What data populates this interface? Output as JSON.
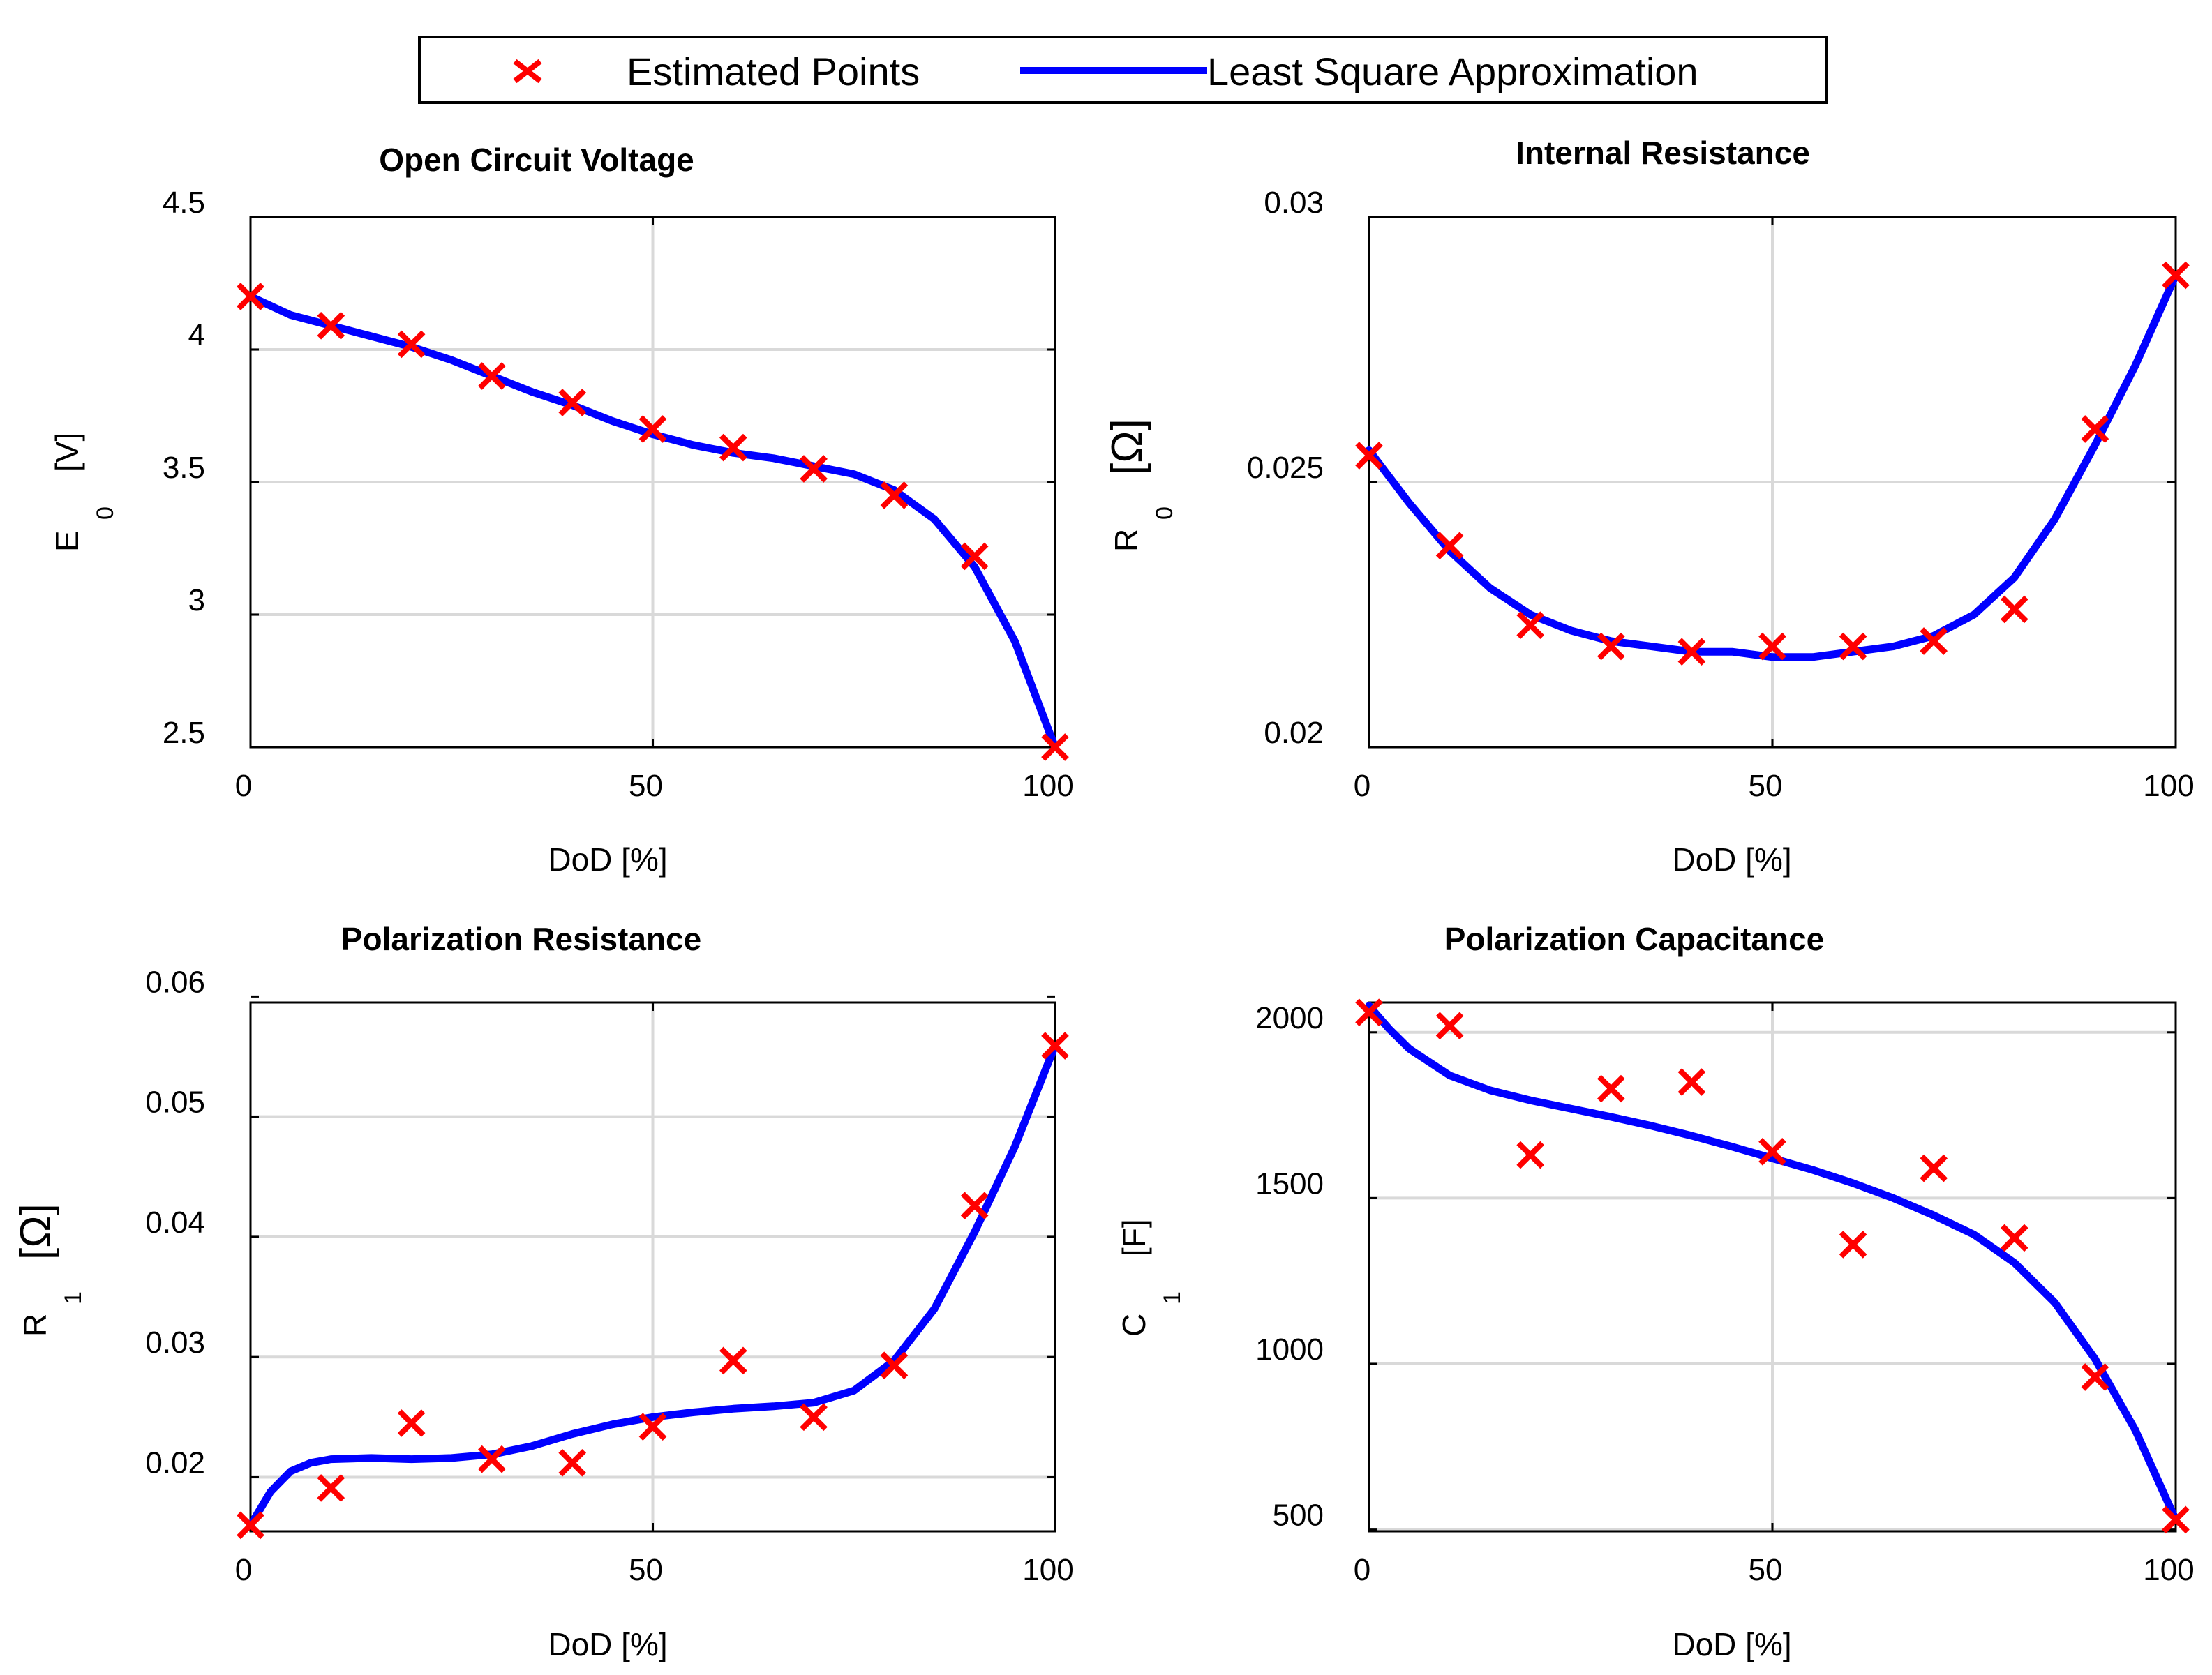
{
  "legend": {
    "points_label": "Estimated Points",
    "fit_label": "Least Square Approximation",
    "marker_color": "#ff0000",
    "line_color": "#0000ff"
  },
  "chart_data": [
    {
      "type": "line",
      "title": "Open Circuit Voltage",
      "xlabel": "DoD [%]",
      "ylabel_main": "E",
      "ylabel_sub": "0",
      "ylabel_unit": "[V]",
      "xlim": [
        0,
        100
      ],
      "ylim": [
        2.5,
        4.5
      ],
      "xticks": [
        0,
        50,
        100
      ],
      "xtick_labels": [
        "0",
        "50",
        "100"
      ],
      "yticks": [
        2.5,
        3,
        3.5,
        4,
        4.5
      ],
      "ytick_labels": [
        "2.5",
        "3",
        "3.5",
        "4",
        "4.5"
      ],
      "grid": true,
      "series": [
        {
          "name": "Estimated Points",
          "kind": "scatter",
          "x": [
            0,
            10,
            20,
            30,
            40,
            50,
            60,
            70,
            80,
            90,
            100
          ],
          "y": [
            4.2,
            4.09,
            4.02,
            3.9,
            3.8,
            3.7,
            3.63,
            3.55,
            3.45,
            3.22,
            2.5
          ]
        },
        {
          "name": "Least Square Approximation",
          "kind": "line",
          "x": [
            0,
            5,
            10,
            15,
            20,
            25,
            30,
            35,
            40,
            45,
            50,
            55,
            60,
            65,
            70,
            75,
            80,
            85,
            90,
            95,
            100
          ],
          "y": [
            4.2,
            4.13,
            4.09,
            4.05,
            4.01,
            3.96,
            3.9,
            3.84,
            3.79,
            3.73,
            3.68,
            3.64,
            3.61,
            3.59,
            3.56,
            3.53,
            3.47,
            3.36,
            3.18,
            2.9,
            2.5
          ]
        }
      ]
    },
    {
      "type": "line",
      "title": "Internal Resistance",
      "xlabel": "DoD [%]",
      "ylabel_main": "R",
      "ylabel_sub": "0",
      "ylabel_unit": "[Ω]",
      "xlim": [
        0,
        100
      ],
      "ylim": [
        0.02,
        0.03
      ],
      "xticks": [
        0,
        50,
        100
      ],
      "xtick_labels": [
        "0",
        "50",
        "100"
      ],
      "yticks": [
        0.02,
        0.025,
        0.03
      ],
      "ytick_labels": [
        "0.02",
        "0.025",
        "0.03"
      ],
      "grid": true,
      "series": [
        {
          "name": "Estimated Points",
          "kind": "scatter",
          "x": [
            0,
            10,
            20,
            30,
            40,
            50,
            60,
            70,
            80,
            90,
            100
          ],
          "y": [
            0.0255,
            0.0238,
            0.0223,
            0.0219,
            0.0218,
            0.0219,
            0.0219,
            0.022,
            0.0226,
            0.026,
            0.0289
          ]
        },
        {
          "name": "Least Square Approximation",
          "kind": "line",
          "x": [
            0,
            5,
            10,
            15,
            20,
            25,
            30,
            35,
            40,
            45,
            50,
            55,
            60,
            65,
            70,
            75,
            80,
            85,
            90,
            95,
            100
          ],
          "y": [
            0.0256,
            0.0246,
            0.0237,
            0.023,
            0.0225,
            0.0222,
            0.022,
            0.0219,
            0.0218,
            0.0218,
            0.0217,
            0.0217,
            0.0218,
            0.0219,
            0.0221,
            0.0225,
            0.0232,
            0.0243,
            0.0257,
            0.0272,
            0.0289
          ]
        }
      ]
    },
    {
      "type": "line",
      "title": "Polarization Resistance",
      "xlabel": "DoD [%]",
      "ylabel_main": "R",
      "ylabel_sub": "1",
      "ylabel_unit": "[Ω]",
      "xlim": [
        0,
        100
      ],
      "ylim": [
        0.0155,
        0.0595
      ],
      "xticks": [
        0,
        50,
        100
      ],
      "xtick_labels": [
        "0",
        "50",
        "100"
      ],
      "yticks": [
        0.02,
        0.03,
        0.04,
        0.05,
        0.06
      ],
      "ytick_labels": [
        "0.02",
        "0.03",
        "0.04",
        "0.05",
        "0.06"
      ],
      "grid": true,
      "series": [
        {
          "name": "Estimated Points",
          "kind": "scatter",
          "x": [
            0,
            10,
            20,
            30,
            40,
            50,
            60,
            70,
            80,
            90,
            100
          ],
          "y": [
            0.016,
            0.0191,
            0.0245,
            0.0215,
            0.0212,
            0.0242,
            0.0297,
            0.025,
            0.0293,
            0.0426,
            0.0559
          ]
        },
        {
          "name": "Least Square Approximation",
          "kind": "line",
          "x": [
            0,
            2.5,
            5,
            7.5,
            10,
            15,
            20,
            25,
            30,
            35,
            40,
            45,
            50,
            55,
            60,
            65,
            70,
            75,
            80,
            85,
            90,
            95,
            100
          ],
          "y": [
            0.016,
            0.0188,
            0.0205,
            0.0212,
            0.0215,
            0.0216,
            0.0215,
            0.0216,
            0.0219,
            0.0226,
            0.0236,
            0.0244,
            0.025,
            0.0254,
            0.0257,
            0.0259,
            0.0262,
            0.0272,
            0.0297,
            0.034,
            0.0404,
            0.0475,
            0.0559
          ]
        }
      ]
    },
    {
      "type": "line",
      "title": "Polarization Capacitance",
      "xlabel": "DoD [%]",
      "ylabel_main": "C",
      "ylabel_sub": "1",
      "ylabel_unit": "[F]",
      "xlim": [
        0,
        100
      ],
      "ylim": [
        495,
        2090
      ],
      "xticks": [
        0,
        50,
        100
      ],
      "xtick_labels": [
        "0",
        "50",
        "100"
      ],
      "yticks": [
        500,
        1000,
        1500,
        2000
      ],
      "ytick_labels": [
        "500",
        "1000",
        "1500",
        "2000"
      ],
      "grid": true,
      "series": [
        {
          "name": "Estimated Points",
          "kind": "scatter",
          "x": [
            0,
            10,
            20,
            30,
            40,
            50,
            60,
            70,
            80,
            90,
            100
          ],
          "y": [
            2060,
            2020,
            1630,
            1830,
            1850,
            1640,
            1360,
            1590,
            1380,
            960,
            530
          ]
        },
        {
          "name": "Least Square Approximation",
          "kind": "line",
          "x": [
            0,
            2.5,
            5,
            10,
            15,
            20,
            25,
            30,
            35,
            40,
            45,
            50,
            55,
            60,
            65,
            70,
            75,
            80,
            85,
            90,
            95,
            100
          ],
          "y": [
            2080,
            2010,
            1950,
            1870,
            1825,
            1795,
            1770,
            1745,
            1718,
            1688,
            1655,
            1620,
            1585,
            1545,
            1500,
            1448,
            1390,
            1305,
            1185,
            1015,
            800,
            530
          ]
        }
      ]
    }
  ]
}
